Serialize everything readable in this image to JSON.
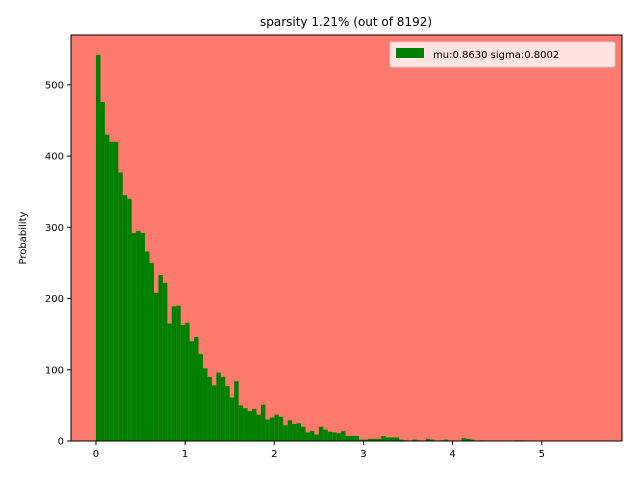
{
  "chart_data": {
    "type": "bar",
    "title": "sparsity 1.21% (out of 8192)",
    "xlabel": "",
    "ylabel": "Probability",
    "xlim": [
      -0.28,
      5.9
    ],
    "ylim": [
      0,
      570
    ],
    "xticks": [
      0,
      1,
      2,
      3,
      4,
      5
    ],
    "yticks": [
      0,
      100,
      200,
      300,
      400,
      500
    ],
    "bin_width": 0.05,
    "bin_start": 0.0,
    "series": [
      {
        "name": "mu:0.8630 sigma:0.8002",
        "values": [
          542,
          476,
          430,
          420,
          420,
          377,
          345,
          340,
          292,
          295,
          292,
          266,
          250,
          208,
          233,
          222,
          165,
          189,
          190,
          163,
          166,
          140,
          146,
          122,
          102,
          90,
          78,
          96,
          90,
          77,
          61,
          84,
          50,
          46,
          42,
          45,
          37,
          51,
          30,
          33,
          37,
          34,
          22,
          29,
          24,
          25,
          20,
          12,
          14,
          9,
          20,
          16,
          13,
          12,
          11,
          14,
          7,
          7,
          7,
          2,
          2,
          3,
          3,
          3,
          7,
          5,
          5,
          5,
          2,
          1,
          0,
          2,
          1,
          0,
          3,
          2,
          0,
          1,
          2,
          0,
          0,
          0,
          4,
          3,
          2,
          0,
          1,
          0,
          0,
          0,
          0,
          0,
          0,
          0,
          1,
          1,
          0,
          0,
          0,
          0,
          0,
          0,
          0,
          0,
          0,
          0,
          0,
          0,
          0,
          0
        ]
      }
    ],
    "colors": {
      "bar": "#008000",
      "plot_background": "#ff7a6e",
      "figure_background": "#ffffff"
    },
    "legend_position": "top-right",
    "grid": false
  }
}
